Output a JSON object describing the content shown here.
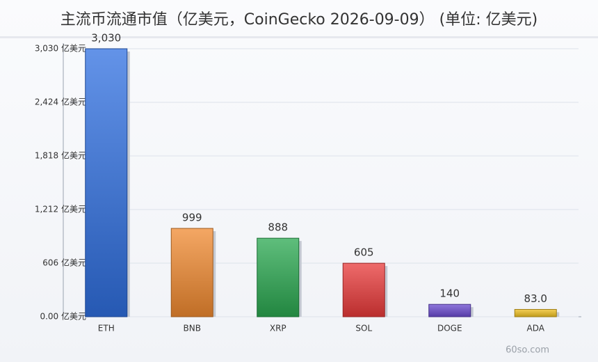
{
  "chart_data": {
    "type": "bar",
    "title": "主流币流通市值（亿美元，CoinGecko 2026-09-09） (单位: 亿美元)",
    "categories": [
      "ETH",
      "BNB",
      "XRP",
      "SOL",
      "DOGE",
      "ADA"
    ],
    "values": [
      3030,
      999,
      888,
      605,
      140,
      83.0
    ],
    "value_labels": [
      "3,030",
      "999",
      "888",
      "605",
      "140",
      "83.0"
    ],
    "colors": [
      "#2f6fe0",
      "#f08a30",
      "#2aa850",
      "#e83a3a",
      "#6a4ad0",
      "#f0c020"
    ],
    "ylim": [
      0,
      3030
    ],
    "yticks": [
      {
        "value": 0,
        "label": "0.00 亿美元"
      },
      {
        "value": 606,
        "label": "606 亿美元"
      },
      {
        "value": 1212,
        "label": "1,212 亿美元"
      },
      {
        "value": 1818,
        "label": "1,818 亿美元"
      },
      {
        "value": 2424,
        "label": "2,424 亿美元"
      },
      {
        "value": 3030,
        "label": "3,030 亿美元"
      }
    ],
    "grid": true,
    "watermark": "60so.com"
  }
}
